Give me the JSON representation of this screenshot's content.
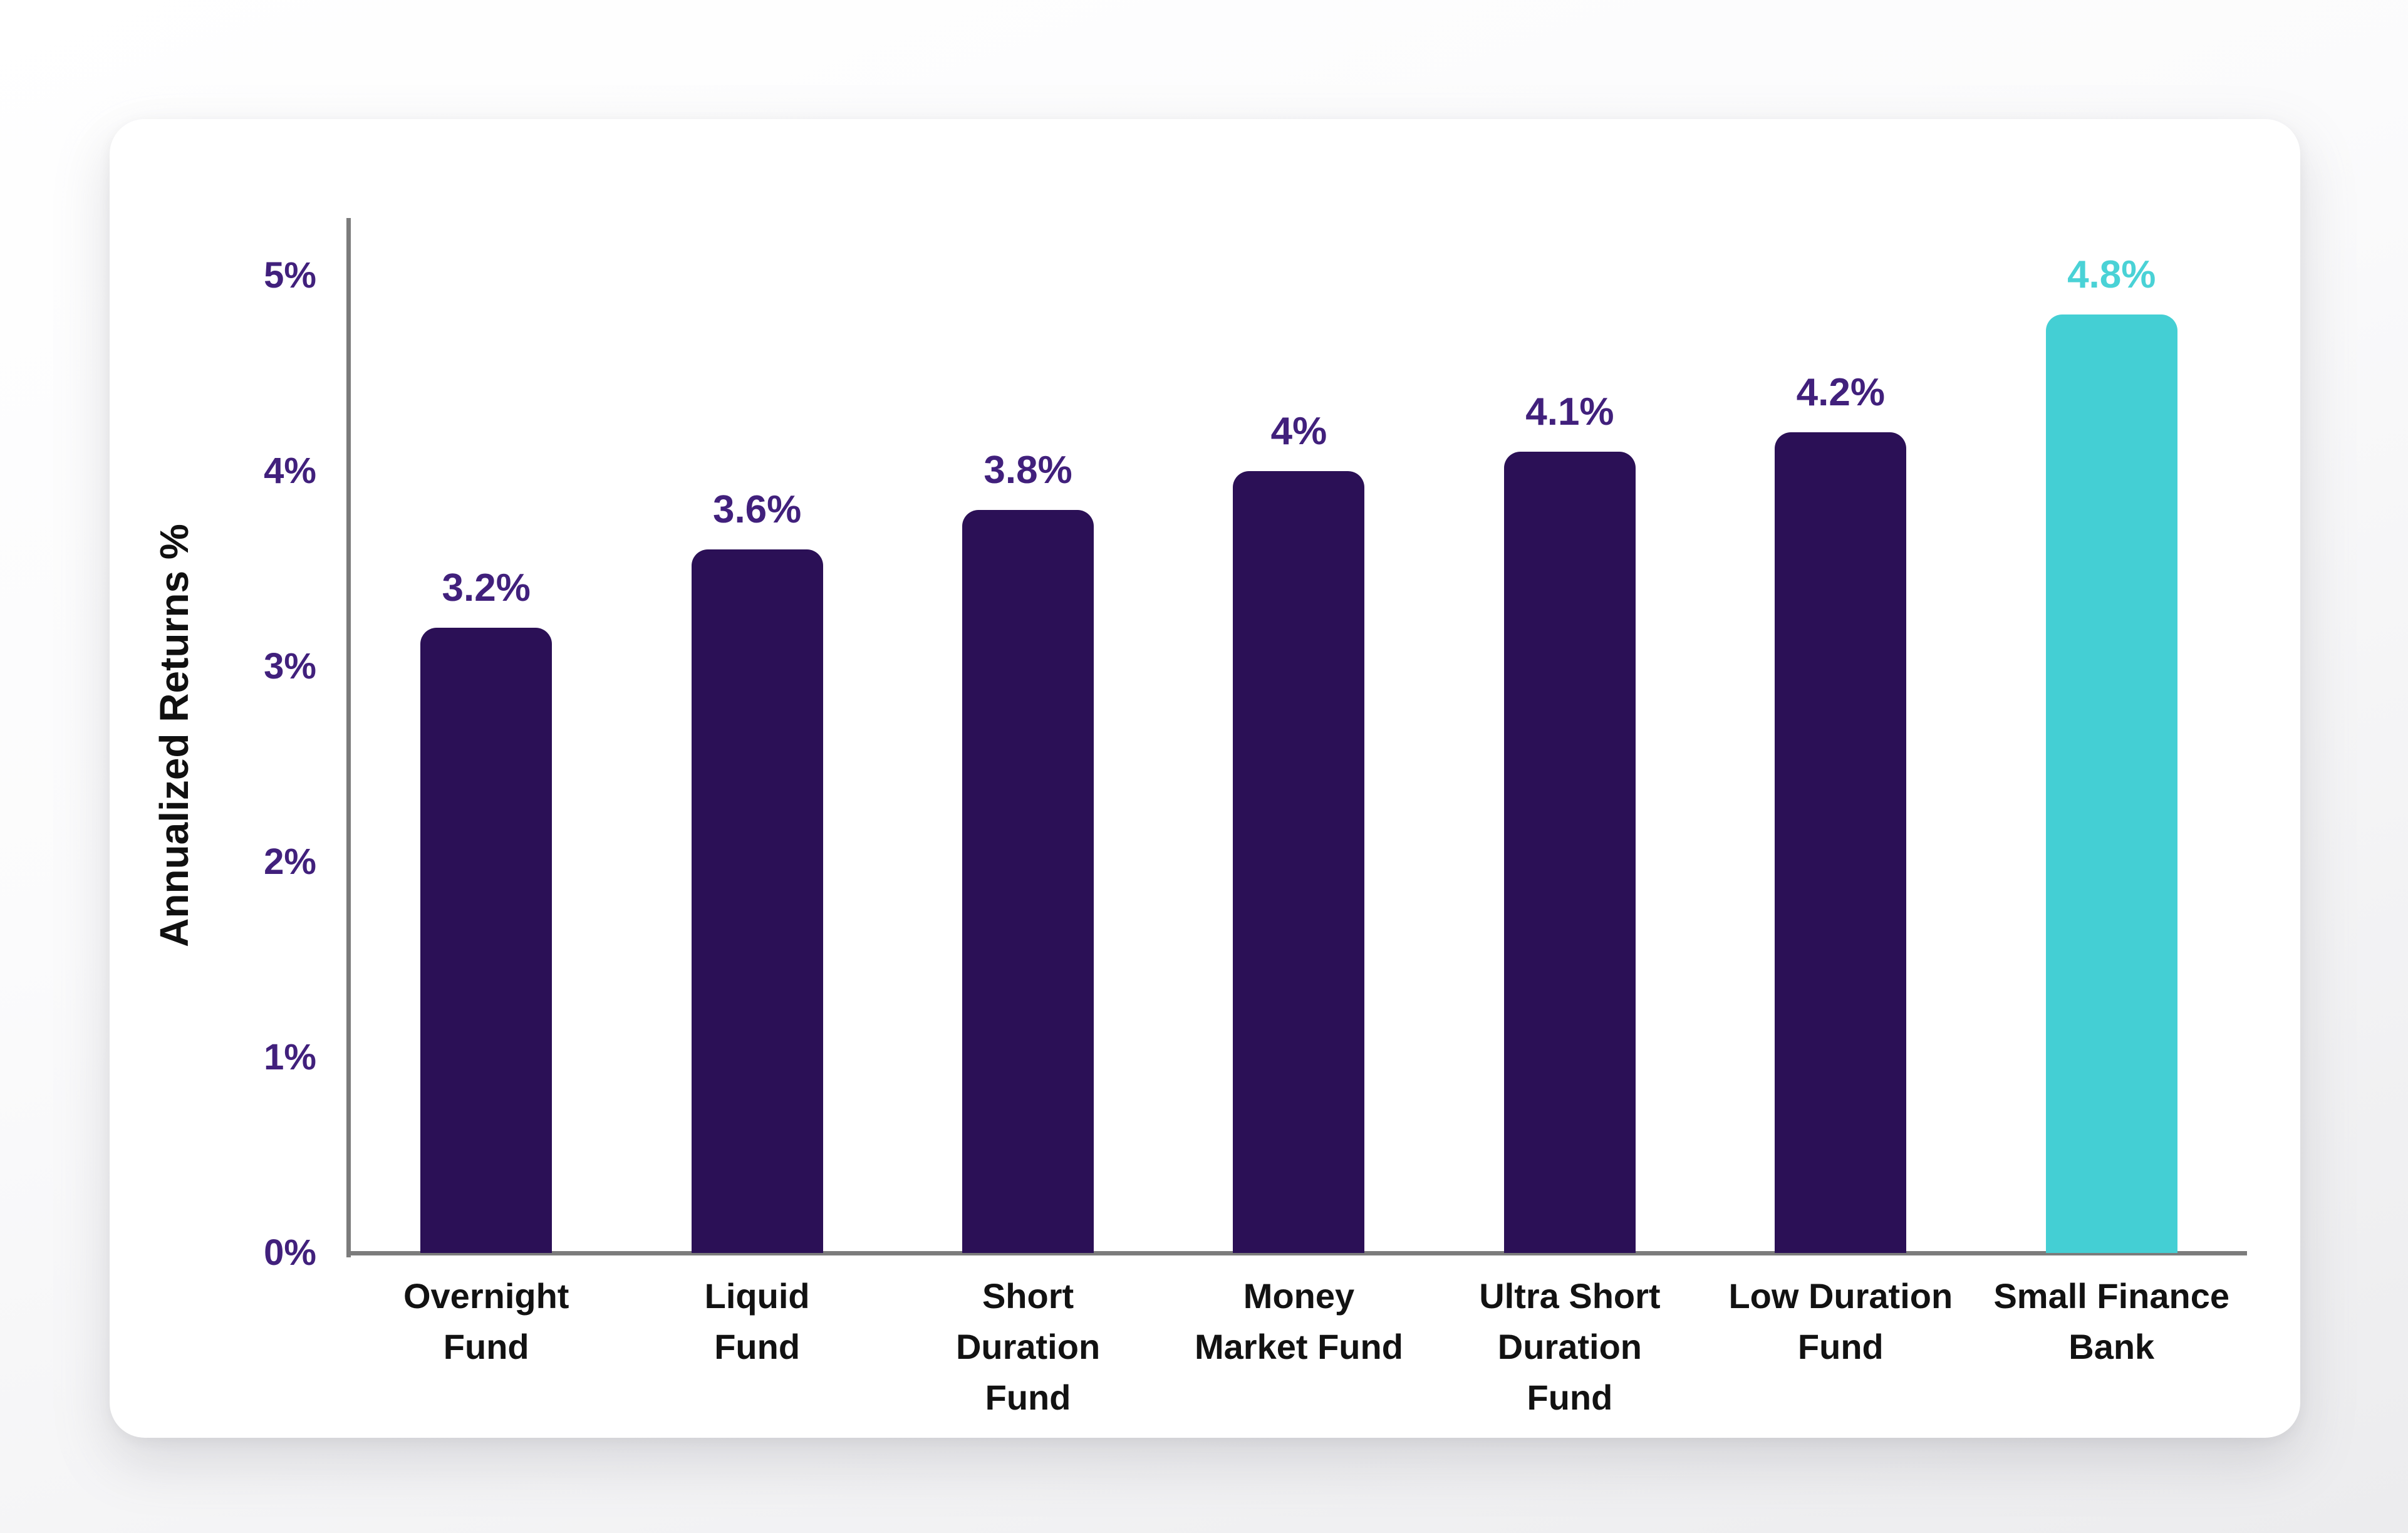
{
  "chart_data": {
    "type": "bar",
    "title": "",
    "xlabel": "",
    "ylabel": "Annualized Returns %",
    "categories": [
      "Overnight Fund",
      "Liquid Fund",
      "Short Duration Fund",
      "Money Market Fund",
      "Ultra Short Duration Fund",
      "Low Duration Fund",
      "Small Finance Bank"
    ],
    "category_lines": [
      [
        "Overnight",
        "Fund"
      ],
      [
        "Liquid",
        "Fund"
      ],
      [
        "Short",
        "Duration",
        "Fund"
      ],
      [
        "Money",
        "Market Fund"
      ],
      [
        "Ultra Short",
        "Duration",
        "Fund"
      ],
      [
        "Low Duration",
        "Fund"
      ],
      [
        "Small Finance",
        "Bank"
      ]
    ],
    "values": [
      3.2,
      3.6,
      3.8,
      4.0,
      4.1,
      4.2,
      4.8
    ],
    "value_labels": [
      "3.2%",
      "3.6%",
      "3.8%",
      "4%",
      "4.1%",
      "4.2%",
      "4.8%"
    ],
    "highlight_index": 6,
    "y_ticks": [
      {
        "label": "5%",
        "value": 5
      },
      {
        "label": "4%",
        "value": 4
      },
      {
        "label": "3%",
        "value": 3
      },
      {
        "label": "2%",
        "value": 2
      },
      {
        "label": "1%",
        "value": 1
      },
      {
        "label": "0%",
        "value": 0
      }
    ],
    "ylim": [
      0,
      5.3
    ],
    "grid": false,
    "legend": false,
    "colors": {
      "bar_default": "#2b1056",
      "bar_highlight": "#44cfd4",
      "value_label_default": "#41207c",
      "value_label_highlight": "#4ad2d6",
      "tick_label": "#41207c",
      "axis_line": "#7c7c7c",
      "category_label": "#121212",
      "card_background": "#ffffff"
    }
  }
}
